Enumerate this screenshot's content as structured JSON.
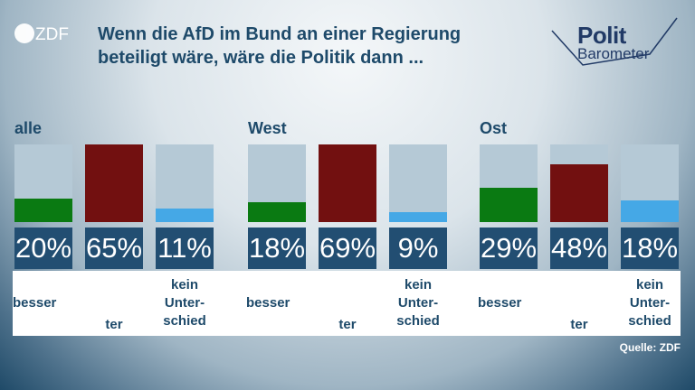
{
  "header": {
    "brand_logo": "ZDF",
    "title": "Wenn die AfD im Bund an einer Regierung beteiligt wäre, wäre die Politik dann ...",
    "politbarometer_logo": {
      "line1": "Polit",
      "line2": "Barometer"
    }
  },
  "source": "Quelle: ZDF",
  "colors": {
    "besser": "#0a7a12",
    "schlechter": "#721010",
    "kein_unterschied": "#45a8e6",
    "value_box": "#224e72",
    "bar_track": "#b5c9d6"
  },
  "chart_data": [
    {
      "type": "bar",
      "title": "alle",
      "categories": [
        "besser",
        "ter",
        "kein\nUnter-\nschied"
      ],
      "values": [
        20,
        65,
        11
      ],
      "value_labels": [
        "20%",
        "65%",
        "11%"
      ],
      "ylim": [
        0,
        65
      ]
    },
    {
      "type": "bar",
      "title": "West",
      "categories": [
        "besser",
        "ter",
        "kein\nUnter-\nschied"
      ],
      "values": [
        18,
        69,
        9
      ],
      "value_labels": [
        "18%",
        "69%",
        "9%"
      ],
      "ylim": [
        0,
        69
      ]
    },
    {
      "type": "bar",
      "title": "Ost",
      "categories": [
        "besser",
        "ter",
        "kein\nUnter-\nschied"
      ],
      "values": [
        29,
        48,
        18
      ],
      "value_labels": [
        "29%",
        "48%",
        "18%"
      ],
      "ylim": [
        0,
        65
      ]
    }
  ]
}
